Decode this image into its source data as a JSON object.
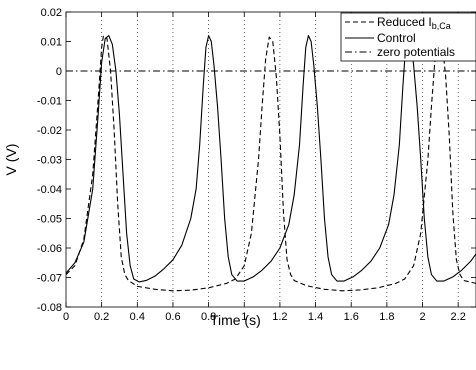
{
  "chart_data": {
    "type": "line",
    "title": "",
    "xlabel": "Time (s)",
    "ylabel": "V (V)",
    "xlim": [
      0,
      2.3
    ],
    "ylim": [
      -0.08,
      0.02
    ],
    "x_ticks": [
      0,
      0.2,
      0.4,
      0.6,
      0.8,
      1,
      1.2,
      1.4,
      1.6,
      1.8,
      2,
      2.2
    ],
    "x_tick_labels": [
      "0",
      "0.2",
      "0.4",
      "0.6",
      "0.8",
      "1",
      "1.2",
      "1.4",
      "1.6",
      "1.8",
      "2",
      "2.2"
    ],
    "y_ticks": [
      -0.08,
      -0.07,
      -0.06,
      -0.05,
      -0.04,
      -0.03,
      -0.02,
      -0.01,
      0,
      0.01,
      0.02
    ],
    "y_tick_labels": [
      "-0.08",
      "-0.07",
      "-0.06",
      "-0.05",
      "-0.04",
      "-0.03",
      "-0.02",
      "-0.01",
      "0",
      "0.01",
      "0.02"
    ],
    "grid": "vertical dotted",
    "legend_position": "top-right",
    "series": [
      {
        "name": "Reduced I",
        "name_subscript": "b,Ca",
        "style": "dashed",
        "color": "#000000",
        "points": [
          [
            0,
            -0.069
          ],
          [
            0.05,
            -0.066
          ],
          [
            0.1,
            -0.057
          ],
          [
            0.15,
            -0.035
          ],
          [
            0.18,
            -0.01
          ],
          [
            0.2,
            0.008
          ],
          [
            0.21,
            0.012
          ],
          [
            0.23,
            0.011
          ],
          [
            0.25,
            0.0
          ],
          [
            0.27,
            -0.02
          ],
          [
            0.29,
            -0.045
          ],
          [
            0.31,
            -0.063
          ],
          [
            0.33,
            -0.069
          ],
          [
            0.35,
            -0.071
          ],
          [
            0.4,
            -0.073
          ],
          [
            0.5,
            -0.074
          ],
          [
            0.6,
            -0.0745
          ],
          [
            0.7,
            -0.0743
          ],
          [
            0.8,
            -0.0735
          ],
          [
            0.9,
            -0.072
          ],
          [
            0.95,
            -0.0705
          ],
          [
            1.0,
            -0.066
          ],
          [
            1.04,
            -0.055
          ],
          [
            1.08,
            -0.03
          ],
          [
            1.1,
            -0.012
          ],
          [
            1.12,
            0.004
          ],
          [
            1.14,
            0.0115
          ],
          [
            1.16,
            0.01
          ],
          [
            1.18,
            -0.002
          ],
          [
            1.2,
            -0.022
          ],
          [
            1.22,
            -0.048
          ],
          [
            1.24,
            -0.064
          ],
          [
            1.26,
            -0.069
          ],
          [
            1.28,
            -0.071
          ],
          [
            1.35,
            -0.0728
          ],
          [
            1.45,
            -0.074
          ],
          [
            1.55,
            -0.0745
          ],
          [
            1.65,
            -0.0742
          ],
          [
            1.75,
            -0.0735
          ],
          [
            1.85,
            -0.072
          ],
          [
            1.9,
            -0.0705
          ],
          [
            1.95,
            -0.066
          ],
          [
            1.99,
            -0.055
          ],
          [
            2.03,
            -0.03
          ],
          [
            2.05,
            -0.012
          ],
          [
            2.07,
            0.004
          ],
          [
            2.09,
            0.0115
          ],
          [
            2.11,
            0.01
          ],
          [
            2.13,
            -0.002
          ],
          [
            2.15,
            -0.022
          ],
          [
            2.17,
            -0.048
          ],
          [
            2.19,
            -0.064
          ],
          [
            2.21,
            -0.069
          ],
          [
            2.23,
            -0.071
          ],
          [
            2.3,
            -0.072
          ]
        ]
      },
      {
        "name": "Control",
        "style": "solid",
        "color": "#000000",
        "points": [
          [
            0,
            -0.0685
          ],
          [
            0.05,
            -0.065
          ],
          [
            0.1,
            -0.058
          ],
          [
            0.15,
            -0.04
          ],
          [
            0.18,
            -0.015
          ],
          [
            0.2,
            0.003
          ],
          [
            0.22,
            0.011
          ],
          [
            0.24,
            0.012
          ],
          [
            0.26,
            0.009
          ],
          [
            0.28,
            0.0
          ],
          [
            0.3,
            -0.015
          ],
          [
            0.32,
            -0.035
          ],
          [
            0.34,
            -0.055
          ],
          [
            0.36,
            -0.066
          ],
          [
            0.38,
            -0.0705
          ],
          [
            0.41,
            -0.0715
          ],
          [
            0.45,
            -0.071
          ],
          [
            0.5,
            -0.0695
          ],
          [
            0.55,
            -0.067
          ],
          [
            0.6,
            -0.064
          ],
          [
            0.65,
            -0.059
          ],
          [
            0.7,
            -0.05
          ],
          [
            0.73,
            -0.04
          ],
          [
            0.75,
            -0.025
          ],
          [
            0.77,
            -0.005
          ],
          [
            0.785,
            0.008
          ],
          [
            0.8,
            0.012
          ],
          [
            0.815,
            0.01
          ],
          [
            0.83,
            0.002
          ],
          [
            0.85,
            -0.012
          ],
          [
            0.87,
            -0.03
          ],
          [
            0.89,
            -0.05
          ],
          [
            0.91,
            -0.063
          ],
          [
            0.93,
            -0.069
          ],
          [
            0.96,
            -0.0712
          ],
          [
            1.0,
            -0.0712
          ],
          [
            1.05,
            -0.0698
          ],
          [
            1.1,
            -0.0675
          ],
          [
            1.15,
            -0.0645
          ],
          [
            1.2,
            -0.06
          ],
          [
            1.25,
            -0.052
          ],
          [
            1.28,
            -0.042
          ],
          [
            1.31,
            -0.025
          ],
          [
            1.33,
            -0.005
          ],
          [
            1.345,
            0.008
          ],
          [
            1.36,
            0.012
          ],
          [
            1.375,
            0.01
          ],
          [
            1.39,
            0.002
          ],
          [
            1.41,
            -0.012
          ],
          [
            1.43,
            -0.03
          ],
          [
            1.45,
            -0.05
          ],
          [
            1.47,
            -0.063
          ],
          [
            1.49,
            -0.069
          ],
          [
            1.52,
            -0.0712
          ],
          [
            1.56,
            -0.0712
          ],
          [
            1.61,
            -0.0698
          ],
          [
            1.66,
            -0.0675
          ],
          [
            1.71,
            -0.0645
          ],
          [
            1.76,
            -0.06
          ],
          [
            1.81,
            -0.052
          ],
          [
            1.84,
            -0.042
          ],
          [
            1.87,
            -0.025
          ],
          [
            1.89,
            -0.005
          ],
          [
            1.905,
            0.008
          ],
          [
            1.92,
            0.012
          ],
          [
            1.935,
            0.01
          ],
          [
            1.95,
            0.002
          ],
          [
            1.97,
            -0.012
          ],
          [
            1.99,
            -0.03
          ],
          [
            2.01,
            -0.05
          ],
          [
            2.03,
            -0.063
          ],
          [
            2.05,
            -0.069
          ],
          [
            2.08,
            -0.0712
          ],
          [
            2.12,
            -0.0712
          ],
          [
            2.17,
            -0.0698
          ],
          [
            2.22,
            -0.0675
          ],
          [
            2.27,
            -0.0645
          ],
          [
            2.3,
            -0.062
          ]
        ]
      },
      {
        "name": "zero potentials",
        "style": "dashdot",
        "color": "#000000",
        "points": [
          [
            0,
            0
          ],
          [
            2.3,
            0
          ]
        ]
      }
    ]
  }
}
